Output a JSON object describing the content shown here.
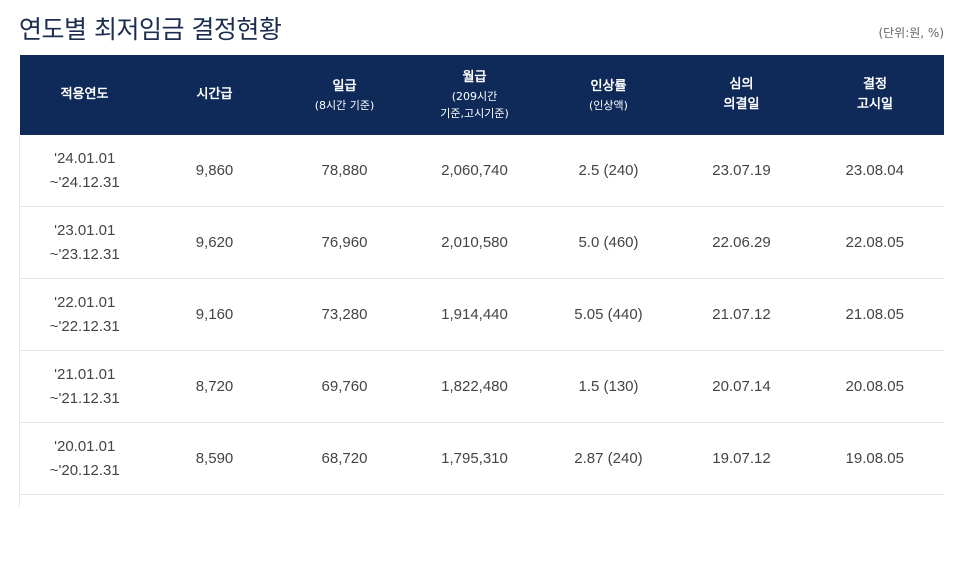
{
  "title": "연도별 최저임금 결정현황",
  "unit": "(단위:원, %)",
  "headers": [
    {
      "label": "적용연도",
      "sub": ""
    },
    {
      "label": "시간급",
      "sub": ""
    },
    {
      "label": "일급",
      "sub": "(8시간 기준)"
    },
    {
      "label": "월급",
      "sub": "(209시간",
      "sub2": "기준,고시기준)"
    },
    {
      "label": "인상률",
      "sub": "(인상액)"
    },
    {
      "label": "심의",
      "sub": "의결일"
    },
    {
      "label": "결정",
      "sub": "고시일"
    }
  ],
  "rows": [
    {
      "period_start": "'24.01.01",
      "period_end": "~'24.12.31",
      "hourly": "9,860",
      "daily": "78,880",
      "monthly": "2,060,740",
      "increase": "2.5 (240)",
      "resolved": "23.07.19",
      "announced": "23.08.04"
    },
    {
      "period_start": "'23.01.01",
      "period_end": "~'23.12.31",
      "hourly": "9,620",
      "daily": "76,960",
      "monthly": "2,010,580",
      "increase": "5.0 (460)",
      "resolved": "22.06.29",
      "announced": "22.08.05"
    },
    {
      "period_start": "'22.01.01",
      "period_end": "~'22.12.31",
      "hourly": "9,160",
      "daily": "73,280",
      "monthly": "1,914,440",
      "increase": "5.05 (440)",
      "resolved": "21.07.12",
      "announced": "21.08.05"
    },
    {
      "period_start": "'21.01.01",
      "period_end": "~'21.12.31",
      "hourly": "8,720",
      "daily": "69,760",
      "monthly": "1,822,480",
      "increase": "1.5 (130)",
      "resolved": "20.07.14",
      "announced": "20.08.05"
    },
    {
      "period_start": "'20.01.01",
      "period_end": "~'20.12.31",
      "hourly": "8,590",
      "daily": "68,720",
      "monthly": "1,795,310",
      "increase": "2.87 (240)",
      "resolved": "19.07.12",
      "announced": "19.08.05"
    }
  ],
  "colors": {
    "header_bg": "#0f2a59",
    "title": "#1d2d50",
    "border": "#e6e6e6"
  }
}
